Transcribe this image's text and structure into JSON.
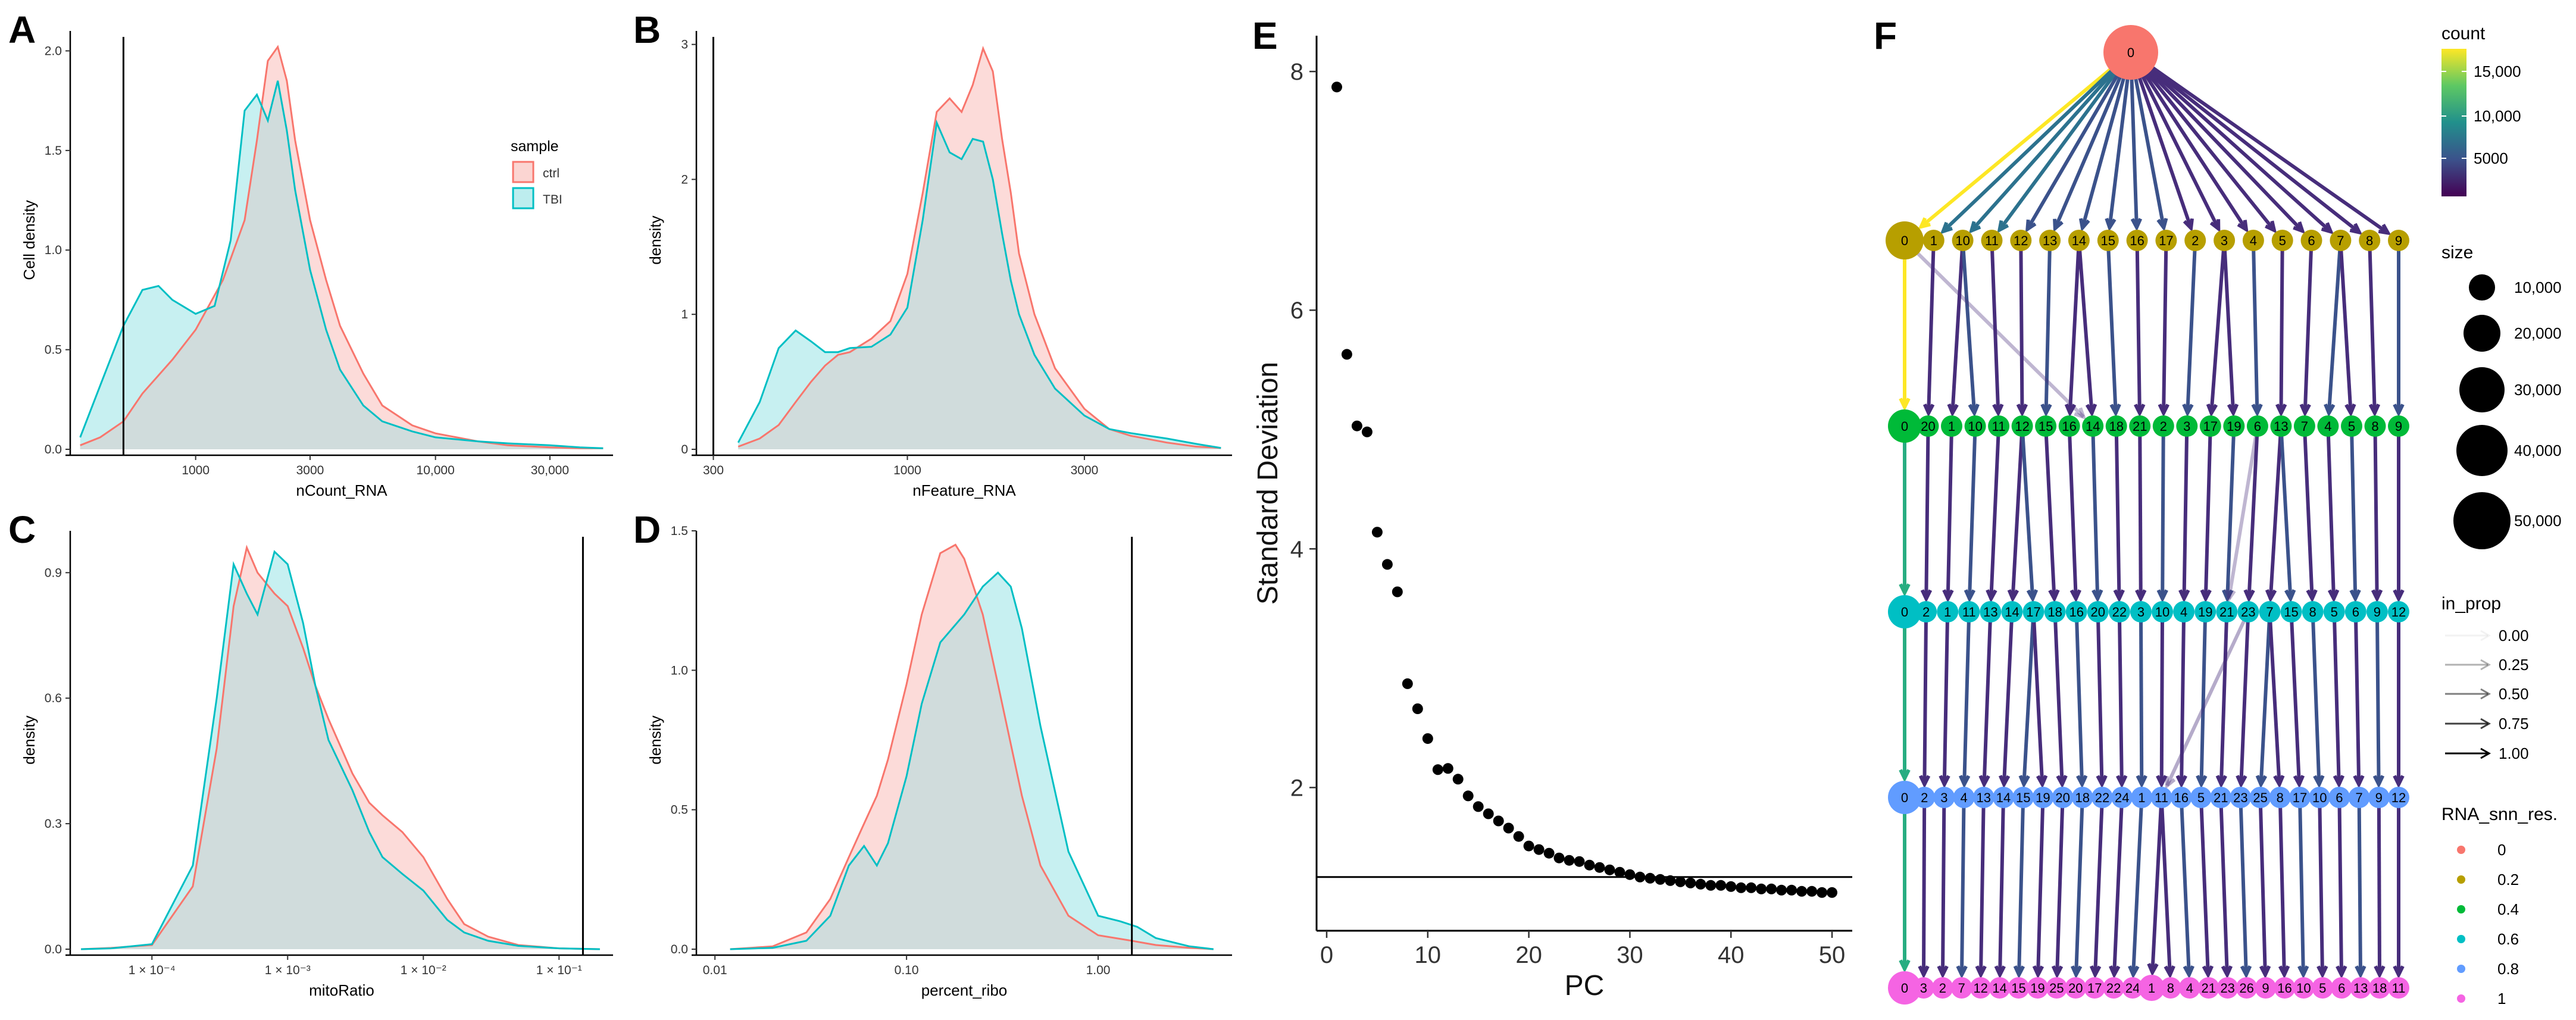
{
  "panels": [
    {
      "id": "A",
      "label": "A",
      "xlabel": "nCount_RNA",
      "ylabel": "Cell density",
      "xticks": [
        {
          "v": 1000,
          "l": "1000"
        },
        {
          "v": 3000,
          "l": "3000"
        },
        {
          "v": 10000,
          "l": "10,000"
        },
        {
          "v": 30000,
          "l": "30,000"
        }
      ],
      "yticks": [
        {
          "v": 0,
          "l": "0.0"
        },
        {
          "v": 0.5,
          "l": "0.5"
        },
        {
          "v": 1,
          "l": "1.0"
        },
        {
          "v": 1.5,
          "l": "1.5"
        },
        {
          "v": 2,
          "l": "2.0"
        }
      ]
    },
    {
      "id": "B",
      "label": "B",
      "xlabel": "nFeature_RNA",
      "ylabel": "density",
      "xticks": [
        {
          "v": 300,
          "l": "300"
        },
        {
          "v": 1000,
          "l": "1000"
        },
        {
          "v": 3000,
          "l": "3000"
        }
      ],
      "yticks": [
        {
          "v": 0,
          "l": "0"
        },
        {
          "v": 1,
          "l": "1"
        },
        {
          "v": 2,
          "l": "2"
        },
        {
          "v": 3,
          "l": "3"
        }
      ]
    },
    {
      "id": "C",
      "label": "C",
      "xlabel": "mitoRatio",
      "ylabel": "density",
      "xticks": [
        {
          "v": 0.0001,
          "l": "1 × 10⁻⁴"
        },
        {
          "v": 0.001,
          "l": "1 × 10⁻³"
        },
        {
          "v": 0.01,
          "l": "1 × 10⁻²"
        },
        {
          "v": 0.1,
          "l": "1 × 10⁻¹"
        }
      ],
      "yticks": [
        {
          "v": 0,
          "l": "0.0"
        },
        {
          "v": 0.3,
          "l": "0.3"
        },
        {
          "v": 0.6,
          "l": "0.6"
        },
        {
          "v": 0.9,
          "l": "0.9"
        }
      ]
    },
    {
      "id": "D",
      "label": "D",
      "xlabel": "percent_ribo",
      "ylabel": "density",
      "xticks": [
        {
          "v": 0.01,
          "l": "0.01"
        },
        {
          "v": 0.1,
          "l": "0.10"
        },
        {
          "v": 1,
          "l": "1.00"
        }
      ],
      "yticks": [
        {
          "v": 0,
          "l": "0.0"
        },
        {
          "v": 0.5,
          "l": "0.5"
        },
        {
          "v": 1,
          "l": "1.0"
        },
        {
          "v": 1.5,
          "l": "1.5"
        }
      ]
    }
  ],
  "panelE": {
    "label": "E",
    "xlabel": "PC",
    "ylabel": "Standard Deviation"
  },
  "panelF": {
    "label": "F"
  },
  "legendSample": {
    "title": "sample",
    "items": [
      "ctrl",
      "TBI"
    ]
  },
  "colors": {
    "ctrl_line": "#F8766D",
    "ctrl_fill": "#FBD5D2",
    "tbi_line": "#00BFC4",
    "tbi_fill": "#BDEDEE",
    "overlap": "#D0DCDC",
    "res0": "#F8766D",
    "res02": "#B79F00",
    "res04": "#00BA38",
    "res06": "#00BFC4",
    "res08": "#619CFF",
    "res1": "#F564E3"
  },
  "legendF": {
    "countTitle": "count",
    "countTicks": [
      "15,000",
      "10,000",
      "5000"
    ],
    "sizeTitle": "size",
    "sizeLabels": [
      "10,000",
      "20,000",
      "30,000",
      "40,000",
      "50,000"
    ],
    "propTitle": "in_prop",
    "propLabels": [
      "0.00",
      "0.25",
      "0.50",
      "0.75",
      "1.00"
    ],
    "resTitle": "RNA_snn_res.",
    "resLabels": [
      "0",
      "0.2",
      "0.4",
      "0.6",
      "0.8",
      "1"
    ]
  },
  "chart_data": [
    {
      "type": "area",
      "panel": "A",
      "xscale": "log10",
      "xlim": [
        300,
        55000
      ],
      "ylim": [
        0,
        2.1
      ],
      "vline": 500,
      "series": [
        {
          "name": "ctrl",
          "x": [
            330,
            400,
            500,
            600,
            800,
            1000,
            1300,
            1600,
            1800,
            2000,
            2200,
            2400,
            2600,
            3000,
            3500,
            4000,
            5000,
            6000,
            8000,
            10000,
            15000,
            20000,
            30000,
            40000,
            50000
          ],
          "y": [
            0.02,
            0.06,
            0.14,
            0.28,
            0.45,
            0.6,
            0.85,
            1.15,
            1.55,
            1.95,
            2.02,
            1.85,
            1.55,
            1.15,
            0.85,
            0.62,
            0.38,
            0.22,
            0.12,
            0.08,
            0.04,
            0.02,
            0.01,
            0.005,
            0.005
          ]
        },
        {
          "name": "TBI",
          "x": [
            330,
            400,
            500,
            600,
            700,
            800,
            1000,
            1200,
            1400,
            1600,
            1800,
            2000,
            2200,
            2400,
            2600,
            3000,
            3500,
            4000,
            5000,
            6000,
            8000,
            10000,
            15000,
            20000,
            30000,
            40000,
            50000
          ],
          "y": [
            0.06,
            0.32,
            0.62,
            0.8,
            0.82,
            0.75,
            0.68,
            0.72,
            1.05,
            1.7,
            1.78,
            1.65,
            1.85,
            1.6,
            1.3,
            0.9,
            0.6,
            0.4,
            0.22,
            0.14,
            0.09,
            0.06,
            0.04,
            0.03,
            0.02,
            0.01,
            0.005
          ]
        }
      ]
    },
    {
      "type": "area",
      "panel": "B",
      "xscale": "log10",
      "xlim": [
        270,
        7500
      ],
      "ylim": [
        0,
        3.1
      ],
      "vline": 300,
      "series": [
        {
          "name": "ctrl",
          "x": [
            350,
            400,
            450,
            500,
            550,
            600,
            650,
            700,
            800,
            900,
            1000,
            1100,
            1200,
            1300,
            1400,
            1500,
            1600,
            1700,
            1800,
            1900,
            2000,
            2200,
            2500,
            3000,
            3500,
            4000,
            5000,
            6000,
            7000
          ],
          "y": [
            0.02,
            0.08,
            0.18,
            0.35,
            0.5,
            0.62,
            0.7,
            0.72,
            0.82,
            0.95,
            1.3,
            1.9,
            2.5,
            2.6,
            2.5,
            2.7,
            2.97,
            2.8,
            2.3,
            1.9,
            1.45,
            1.0,
            0.6,
            0.3,
            0.15,
            0.1,
            0.05,
            0.02,
            0.01
          ]
        },
        {
          "name": "TBI",
          "x": [
            350,
            400,
            450,
            500,
            550,
            600,
            650,
            700,
            800,
            900,
            1000,
            1100,
            1200,
            1300,
            1400,
            1500,
            1600,
            1700,
            1800,
            1900,
            2000,
            2200,
            2500,
            3000,
            3500,
            4000,
            5000,
            6000,
            7000
          ],
          "y": [
            0.05,
            0.35,
            0.75,
            0.88,
            0.8,
            0.72,
            0.72,
            0.75,
            0.76,
            0.85,
            1.05,
            1.7,
            2.42,
            2.2,
            2.15,
            2.3,
            2.28,
            2.0,
            1.6,
            1.25,
            1.0,
            0.7,
            0.45,
            0.25,
            0.15,
            0.12,
            0.08,
            0.04,
            0.01
          ]
        }
      ]
    },
    {
      "type": "area",
      "panel": "C",
      "xscale": "log10",
      "xlim": [
        2.5e-05,
        0.25
      ],
      "ylim": [
        0,
        1.0
      ],
      "vline": 0.15,
      "series": [
        {
          "name": "ctrl",
          "x": [
            3e-05,
            5e-05,
            0.0001,
            0.0002,
            0.0003,
            0.0004,
            0.0005,
            0.0006,
            0.0008,
            0.001,
            0.0013,
            0.0016,
            0.002,
            0.003,
            0.004,
            0.005,
            0.007,
            0.01,
            0.015,
            0.02,
            0.03,
            0.05,
            0.1,
            0.2
          ],
          "y": [
            0.0,
            0.003,
            0.01,
            0.15,
            0.48,
            0.82,
            0.96,
            0.9,
            0.85,
            0.82,
            0.72,
            0.63,
            0.55,
            0.42,
            0.35,
            0.32,
            0.28,
            0.22,
            0.12,
            0.06,
            0.03,
            0.01,
            0.002,
            0.0
          ]
        },
        {
          "name": "TBI",
          "x": [
            3e-05,
            5e-05,
            0.0001,
            0.0002,
            0.0003,
            0.0004,
            0.0005,
            0.0006,
            0.0007,
            0.0008,
            0.001,
            0.0013,
            0.0016,
            0.002,
            0.003,
            0.004,
            0.005,
            0.007,
            0.01,
            0.015,
            0.02,
            0.03,
            0.05,
            0.1,
            0.2
          ],
          "y": [
            0.0,
            0.002,
            0.012,
            0.2,
            0.6,
            0.92,
            0.85,
            0.8,
            0.88,
            0.95,
            0.92,
            0.78,
            0.63,
            0.5,
            0.38,
            0.28,
            0.22,
            0.18,
            0.14,
            0.07,
            0.04,
            0.02,
            0.008,
            0.002,
            0.0
          ]
        }
      ]
    },
    {
      "type": "area",
      "panel": "D",
      "xscale": "log10",
      "xlim": [
        0.008,
        5
      ],
      "ylim": [
        0,
        1.5
      ],
      "vline": 1.5,
      "series": [
        {
          "name": "ctrl",
          "x": [
            0.012,
            0.02,
            0.03,
            0.04,
            0.05,
            0.06,
            0.07,
            0.08,
            0.1,
            0.12,
            0.15,
            0.18,
            0.2,
            0.25,
            0.3,
            0.4,
            0.5,
            0.7,
            1.0,
            1.5,
            2.0,
            3.0,
            4.0
          ],
          "y": [
            0.0,
            0.01,
            0.06,
            0.18,
            0.33,
            0.45,
            0.55,
            0.68,
            0.95,
            1.2,
            1.42,
            1.45,
            1.4,
            1.2,
            0.95,
            0.55,
            0.3,
            0.12,
            0.05,
            0.03,
            0.015,
            0.005,
            0.0
          ]
        },
        {
          "name": "TBI",
          "x": [
            0.012,
            0.02,
            0.03,
            0.04,
            0.05,
            0.06,
            0.07,
            0.08,
            0.1,
            0.12,
            0.15,
            0.2,
            0.25,
            0.3,
            0.35,
            0.4,
            0.5,
            0.7,
            1.0,
            1.3,
            1.6,
            2.0,
            3.0,
            4.0
          ],
          "y": [
            0.0,
            0.005,
            0.03,
            0.12,
            0.3,
            0.37,
            0.3,
            0.38,
            0.62,
            0.88,
            1.1,
            1.2,
            1.3,
            1.35,
            1.3,
            1.15,
            0.8,
            0.35,
            0.12,
            0.1,
            0.08,
            0.04,
            0.01,
            0.0
          ]
        }
      ]
    },
    {
      "type": "scatter",
      "panel": "E",
      "xlabel": "PC",
      "ylabel": "Standard Deviation",
      "xlim": [
        -1,
        52
      ],
      "ylim": [
        0.8,
        8.3
      ],
      "hline": 1.25,
      "xticks": [
        0,
        10,
        20,
        30,
        40,
        50
      ],
      "yticks": [
        2,
        4,
        6,
        8
      ],
      "x": [
        1,
        2,
        3,
        4,
        5,
        6,
        7,
        8,
        9,
        10,
        11,
        12,
        13,
        14,
        15,
        16,
        17,
        18,
        19,
        20,
        21,
        22,
        23,
        24,
        25,
        26,
        27,
        28,
        29,
        30,
        31,
        32,
        33,
        34,
        35,
        36,
        37,
        38,
        39,
        40,
        41,
        42,
        43,
        44,
        45,
        46,
        47,
        48,
        49,
        50
      ],
      "y": [
        7.87,
        5.63,
        5.03,
        4.98,
        4.14,
        3.87,
        3.64,
        2.87,
        2.66,
        2.41,
        2.15,
        2.16,
        2.07,
        1.93,
        1.84,
        1.78,
        1.72,
        1.66,
        1.59,
        1.51,
        1.48,
        1.45,
        1.41,
        1.39,
        1.38,
        1.35,
        1.33,
        1.31,
        1.29,
        1.27,
        1.25,
        1.24,
        1.23,
        1.22,
        1.21,
        1.2,
        1.19,
        1.18,
        1.18,
        1.17,
        1.16,
        1.16,
        1.15,
        1.15,
        1.14,
        1.14,
        1.13,
        1.13,
        1.12,
        1.12
      ]
    },
    {
      "type": "diagram",
      "panel": "F",
      "resolutions": [
        "0",
        "0.2",
        "0.4",
        "0.6",
        "0.8",
        "1"
      ],
      "levels": [
        [
          "0"
        ],
        [
          "0",
          "1",
          "10",
          "11",
          "12",
          "13",
          "14",
          "15",
          "16",
          "17",
          "2",
          "3",
          "4",
          "5",
          "6",
          "7",
          "8",
          "9"
        ],
        [
          "0",
          "20",
          "1",
          "10",
          "11",
          "12",
          "15",
          "16",
          "14",
          "18",
          "21",
          "2",
          "3",
          "17",
          "19",
          "6",
          "13",
          "7",
          "4",
          "5",
          "8",
          "9"
        ],
        [
          "0",
          "2",
          "1",
          "11",
          "13",
          "14",
          "17",
          "18",
          "16",
          "20",
          "22",
          "3",
          "10",
          "4",
          "19",
          "21",
          "23",
          "7",
          "15",
          "8",
          "5",
          "6",
          "9",
          "12"
        ],
        [
          "0",
          "2",
          "3",
          "4",
          "13",
          "14",
          "15",
          "19",
          "20",
          "18",
          "22",
          "24",
          "1",
          "11",
          "16",
          "5",
          "21",
          "23",
          "25",
          "8",
          "17",
          "10",
          "6",
          "7",
          "9",
          "12"
        ],
        [
          "0",
          "3",
          "2",
          "7",
          "12",
          "14",
          "15",
          "19",
          "25",
          "20",
          "17",
          "22",
          "24",
          "1",
          "8",
          "4",
          "21",
          "23",
          "26",
          "9",
          "16",
          "10",
          "5",
          "6",
          "13",
          "18",
          "11"
        ]
      ]
    }
  ]
}
